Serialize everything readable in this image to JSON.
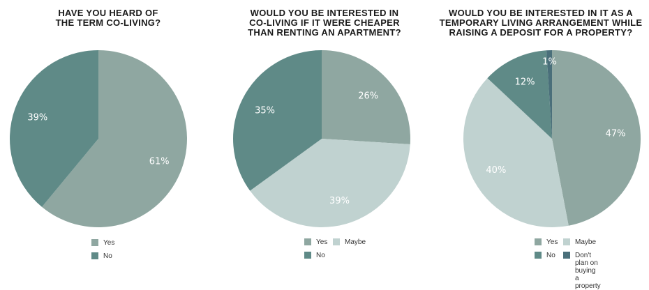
{
  "colors": {
    "yes": "#8fa7a1",
    "no": "#5f8a87",
    "maybe": "#c0d2d0",
    "dont_plan": "#4a6f7a"
  },
  "chart_data": [
    {
      "type": "pie",
      "title": "HAVE YOU HEARD OF\nTHE TERM CO-LIVING?",
      "slices": [
        {
          "label": "Yes",
          "value": 61,
          "display": "61%"
        },
        {
          "label": "No",
          "value": 39,
          "display": "39%"
        }
      ],
      "legend": [
        "Yes",
        "No"
      ]
    },
    {
      "type": "pie",
      "title": "WOULD YOU BE INTERESTED IN\nCO-LIVING IF IT WERE CHEAPER\nTHAN RENTING AN APARTMENT?",
      "slices": [
        {
          "label": "Yes",
          "value": 26,
          "display": "26%"
        },
        {
          "label": "Maybe",
          "value": 39,
          "display": "39%"
        },
        {
          "label": "No",
          "value": 35,
          "display": "35%"
        }
      ],
      "legend": [
        "Yes",
        "Maybe",
        "No"
      ]
    },
    {
      "type": "pie",
      "title": "WOULD YOU BE INTERESTED IN IT AS A\nTEMPORARY LIVING ARRANGEMENT WHILE\nRAISING A DEPOSIT FOR A PROPERTY?",
      "slices": [
        {
          "label": "Yes",
          "value": 47,
          "display": "47%"
        },
        {
          "label": "Maybe",
          "value": 40,
          "display": "40%"
        },
        {
          "label": "No",
          "value": 12,
          "display": "12%"
        },
        {
          "label": "Don't plan on\nbuying a property",
          "value": 1,
          "display": "1%"
        }
      ],
      "legend": [
        "Yes",
        "Maybe",
        "No",
        "Don't plan on\nbuying a property"
      ]
    }
  ]
}
